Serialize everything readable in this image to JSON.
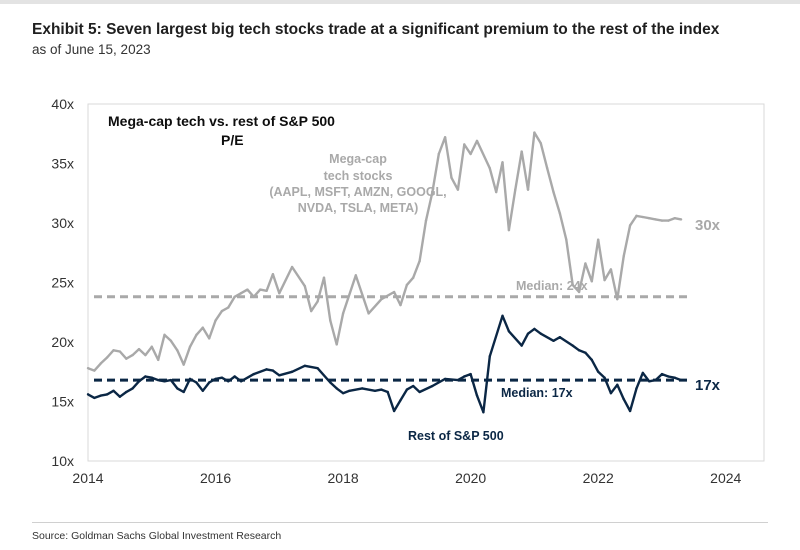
{
  "header": {
    "title": "Exhibit 5: Seven largest big tech stocks trade at a significant premium to the rest of the index",
    "subtitle": "as of June 15, 2023"
  },
  "footer": {
    "source": "Source: Goldman Sachs Global Investment Research"
  },
  "colors": {
    "mega_cap": "#a9a9a9",
    "rest": "#0b2745"
  },
  "chart_data": {
    "type": "line",
    "title": "Mega-cap tech vs. rest of S&P 500",
    "title_line2": "P/E",
    "xlabel": "",
    "ylabel": "",
    "xlim": [
      2014,
      2024.6
    ],
    "ylim": [
      10,
      40
    ],
    "xticks": [
      2014,
      2016,
      2018,
      2020,
      2022,
      2024
    ],
    "xtick_labels": [
      "2014",
      "2016",
      "2018",
      "2020",
      "2022",
      "2024"
    ],
    "yticks": [
      10,
      15,
      20,
      25,
      30,
      35,
      40
    ],
    "ytick_labels": [
      "10x",
      "15x",
      "20x",
      "25x",
      "30x",
      "35x",
      "40x"
    ],
    "grid": false,
    "series": [
      {
        "name": "Mega-cap tech stocks",
        "label_lines": [
          "Mega-cap",
          "tech stocks",
          "(AAPL, MSFT, AMZN, GOOGL,",
          "NVDA, TSLA, META)"
        ],
        "end_label": "30x",
        "median": 23.8,
        "median_label": "Median: 24x",
        "x": [
          2014.0,
          2014.1,
          2014.2,
          2014.3,
          2014.4,
          2014.5,
          2014.6,
          2014.7,
          2014.8,
          2014.9,
          2015.0,
          2015.1,
          2015.2,
          2015.3,
          2015.4,
          2015.5,
          2015.6,
          2015.7,
          2015.8,
          2015.9,
          2016.0,
          2016.1,
          2016.2,
          2016.3,
          2016.4,
          2016.5,
          2016.6,
          2016.7,
          2016.8,
          2016.9,
          2017.0,
          2017.2,
          2017.4,
          2017.5,
          2017.6,
          2017.7,
          2017.8,
          2017.9,
          2018.0,
          2018.2,
          2018.4,
          2018.6,
          2018.8,
          2018.9,
          2019.0,
          2019.1,
          2019.2,
          2019.3,
          2019.4,
          2019.5,
          2019.6,
          2019.7,
          2019.8,
          2019.9,
          2020.0,
          2020.1,
          2020.3,
          2020.4,
          2020.5,
          2020.6,
          2020.7,
          2020.8,
          2020.9,
          2021.0,
          2021.1,
          2021.2,
          2021.3,
          2021.4,
          2021.5,
          2021.6,
          2021.7,
          2021.8,
          2021.9,
          2022.0,
          2022.1,
          2022.2,
          2022.3,
          2022.4,
          2022.5,
          2022.6,
          2022.7,
          2022.8,
          2022.9,
          2023.0,
          2023.1,
          2023.2,
          2023.3
        ],
        "values": [
          17.8,
          17.6,
          18.2,
          18.7,
          19.3,
          19.2,
          18.6,
          18.9,
          19.4,
          18.9,
          19.6,
          18.5,
          20.6,
          20.1,
          19.3,
          18.1,
          19.6,
          20.6,
          21.2,
          20.3,
          21.8,
          22.6,
          22.9,
          23.8,
          24.1,
          24.4,
          23.8,
          24.4,
          24.3,
          25.7,
          24.1,
          26.3,
          24.7,
          22.6,
          23.4,
          25.4,
          21.8,
          19.8,
          22.4,
          25.6,
          22.4,
          23.6,
          24.2,
          23.1,
          24.8,
          25.4,
          26.8,
          30.2,
          32.6,
          35.8,
          37.2,
          33.8,
          32.8,
          36.6,
          35.8,
          36.9,
          34.6,
          32.6,
          35.1,
          29.4,
          32.8,
          36.0,
          32.8,
          37.6,
          36.7,
          34.6,
          32.6,
          30.8,
          28.6,
          24.8,
          24.2,
          26.6,
          25.1,
          28.6,
          25.2,
          26.1,
          23.6,
          27.2,
          29.8,
          30.6,
          30.5,
          30.4,
          30.3,
          30.2,
          30.2,
          30.4,
          30.3
        ]
      },
      {
        "name": "Rest of S&P 500",
        "label_lines": [
          "Rest of S&P 500"
        ],
        "end_label": "17x",
        "median": 16.8,
        "median_label": "Median: 17x",
        "x": [
          2014.0,
          2014.1,
          2014.2,
          2014.3,
          2014.4,
          2014.5,
          2014.6,
          2014.7,
          2014.8,
          2014.9,
          2015.0,
          2015.1,
          2015.2,
          2015.3,
          2015.4,
          2015.5,
          2015.6,
          2015.7,
          2015.8,
          2015.9,
          2016.0,
          2016.1,
          2016.2,
          2016.3,
          2016.4,
          2016.6,
          2016.8,
          2016.9,
          2017.0,
          2017.2,
          2017.4,
          2017.6,
          2017.8,
          2017.9,
          2018.0,
          2018.1,
          2018.3,
          2018.5,
          2018.6,
          2018.7,
          2018.8,
          2018.9,
          2019.0,
          2019.1,
          2019.2,
          2019.4,
          2019.6,
          2019.8,
          2019.9,
          2020.0,
          2020.1,
          2020.2,
          2020.3,
          2020.5,
          2020.6,
          2020.8,
          2020.9,
          2021.0,
          2021.1,
          2021.3,
          2021.4,
          2021.6,
          2021.7,
          2021.8,
          2021.9,
          2022.0,
          2022.1,
          2022.2,
          2022.3,
          2022.4,
          2022.5,
          2022.6,
          2022.7,
          2022.8,
          2022.9,
          2023.0,
          2023.1,
          2023.2,
          2023.3
        ],
        "values": [
          15.6,
          15.3,
          15.5,
          15.6,
          15.9,
          15.4,
          15.8,
          16.1,
          16.7,
          17.1,
          17.0,
          16.8,
          16.7,
          16.8,
          16.1,
          15.8,
          16.9,
          16.6,
          15.9,
          16.6,
          16.9,
          17.0,
          16.7,
          17.1,
          16.7,
          17.3,
          17.7,
          17.6,
          17.2,
          17.5,
          18.0,
          17.8,
          16.6,
          16.1,
          15.7,
          15.9,
          16.1,
          15.9,
          16.0,
          15.8,
          14.2,
          15.1,
          16.0,
          16.3,
          15.8,
          16.3,
          16.9,
          16.8,
          17.1,
          17.3,
          15.5,
          14.1,
          18.8,
          22.2,
          20.9,
          19.7,
          20.7,
          21.1,
          20.7,
          20.1,
          20.4,
          19.7,
          19.3,
          19.1,
          18.5,
          17.5,
          17.0,
          15.7,
          16.4,
          15.2,
          14.2,
          16.1,
          17.4,
          16.7,
          16.8,
          17.3,
          17.1,
          17.0,
          16.8
        ]
      }
    ]
  }
}
